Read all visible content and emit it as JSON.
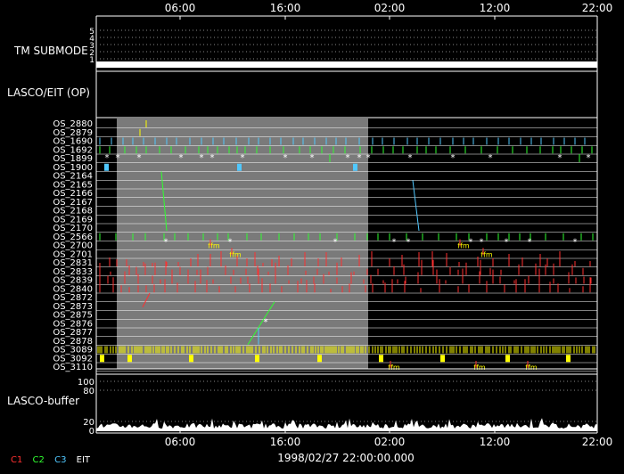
{
  "chart_data": {
    "type": "timeline",
    "x_ticks": [
      "06:00",
      "16:00",
      "02:00",
      "12:00",
      "22:00"
    ],
    "date_label": "1998/02/27 22:00:00.000",
    "tm_submode": {
      "label": "TM SUBMODE",
      "levels": [
        "5",
        "4",
        "3",
        "2",
        "1"
      ],
      "active_level": "1"
    },
    "panel_label": "LASCO/EIT (OP)",
    "os_rows": [
      "OS_2880",
      "OS_2879",
      "OS_1690",
      "OS_1692",
      "OS_1899",
      "OS_1900",
      "OS_2164",
      "OS_2165",
      "OS_2166",
      "OS_2167",
      "OS_2168",
      "OS_2169",
      "OS_2170",
      "OS_2566",
      "OS_2700",
      "OS_2701",
      "OS_2831",
      "OS_2833",
      "OS_2839",
      "OS_2840",
      "OS_2872",
      "OS_2873",
      "OS_2875",
      "OS_2876",
      "OS_2877",
      "OS_2878",
      "OS_3089",
      "OS_3092",
      "OS_3110"
    ],
    "buffer": {
      "label": "LASCO-buffer",
      "levels": [
        "100",
        "80",
        "20",
        "0"
      ]
    },
    "legend": [
      {
        "name": "C1",
        "color": "#ff3030"
      },
      {
        "name": "C2",
        "color": "#30ff30"
      },
      {
        "name": "C3",
        "color": "#50c8ff"
      },
      {
        "name": "EIT",
        "color": "#ffffff"
      }
    ],
    "colors": {
      "shade": "#7a7a7a",
      "eit_yellow": "#ffff00",
      "c1_red": "#ff3030",
      "c2_green": "#30ff30",
      "c3_cyan": "#50c8ff"
    }
  }
}
